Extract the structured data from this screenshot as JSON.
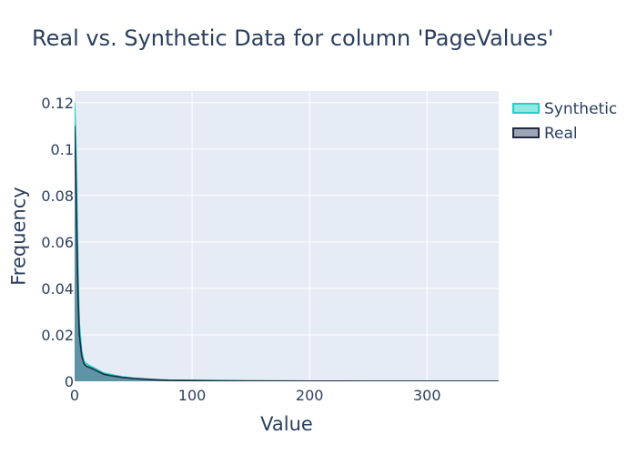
{
  "chart_data": {
    "type": "area",
    "title": "Real vs. Synthetic Data for column 'PageValues'",
    "xlabel": "Value",
    "ylabel": "Frequency",
    "xlim": [
      0,
      361
    ],
    "ylim": [
      0,
      0.125
    ],
    "x_ticks": [
      {
        "value": 0,
        "label": "0"
      },
      {
        "value": 100,
        "label": "100"
      },
      {
        "value": 200,
        "label": "200"
      },
      {
        "value": 300,
        "label": "300"
      }
    ],
    "y_ticks": [
      {
        "value": 0,
        "label": "0"
      },
      {
        "value": 0.02,
        "label": "0.02"
      },
      {
        "value": 0.04,
        "label": "0.04"
      },
      {
        "value": 0.06,
        "label": "0.06"
      },
      {
        "value": 0.08,
        "label": "0.08"
      },
      {
        "value": 0.1,
        "label": "0.1"
      },
      {
        "value": 0.12,
        "label": "0.12"
      }
    ],
    "grid": true,
    "legend_position": "top-right",
    "series": [
      {
        "name": "Synthetic",
        "line_color": "#1fd1c6",
        "fill_color": "#1fd1c6",
        "points": [
          [
            0,
            0.12
          ],
          [
            1,
            0.105
          ],
          [
            2,
            0.075
          ],
          [
            3,
            0.045
          ],
          [
            4,
            0.025
          ],
          [
            6,
            0.013
          ],
          [
            8,
            0.0085
          ],
          [
            10,
            0.0075
          ],
          [
            15,
            0.0062
          ],
          [
            20,
            0.0048
          ],
          [
            25,
            0.0035
          ],
          [
            30,
            0.003
          ],
          [
            40,
            0.002
          ],
          [
            50,
            0.0014
          ],
          [
            60,
            0.001
          ],
          [
            70,
            0.0007
          ],
          [
            80,
            0.0005
          ],
          [
            100,
            0.0004
          ],
          [
            125,
            0.0003
          ],
          [
            150,
            0.0002
          ],
          [
            200,
            0.0001
          ],
          [
            250,
            5e-05
          ],
          [
            300,
            3e-05
          ],
          [
            361,
            2e-05
          ]
        ]
      },
      {
        "name": "Real",
        "line_color": "#1f2a44",
        "fill_color": "#3b4a6b",
        "points": [
          [
            0,
            0.11
          ],
          [
            1,
            0.09
          ],
          [
            2,
            0.06
          ],
          [
            3,
            0.035
          ],
          [
            4,
            0.02
          ],
          [
            6,
            0.011
          ],
          [
            8,
            0.0075
          ],
          [
            10,
            0.0065
          ],
          [
            15,
            0.0055
          ],
          [
            20,
            0.0042
          ],
          [
            25,
            0.003
          ],
          [
            30,
            0.0025
          ],
          [
            40,
            0.0017
          ],
          [
            50,
            0.0012
          ],
          [
            60,
            0.0009
          ],
          [
            70,
            0.0006
          ],
          [
            80,
            0.0004
          ],
          [
            100,
            0.0003
          ],
          [
            125,
            0.0002
          ],
          [
            150,
            0.00015
          ],
          [
            200,
            0.0001
          ],
          [
            250,
            5e-05
          ],
          [
            300,
            3e-05
          ],
          [
            361,
            2e-05
          ]
        ]
      }
    ]
  }
}
